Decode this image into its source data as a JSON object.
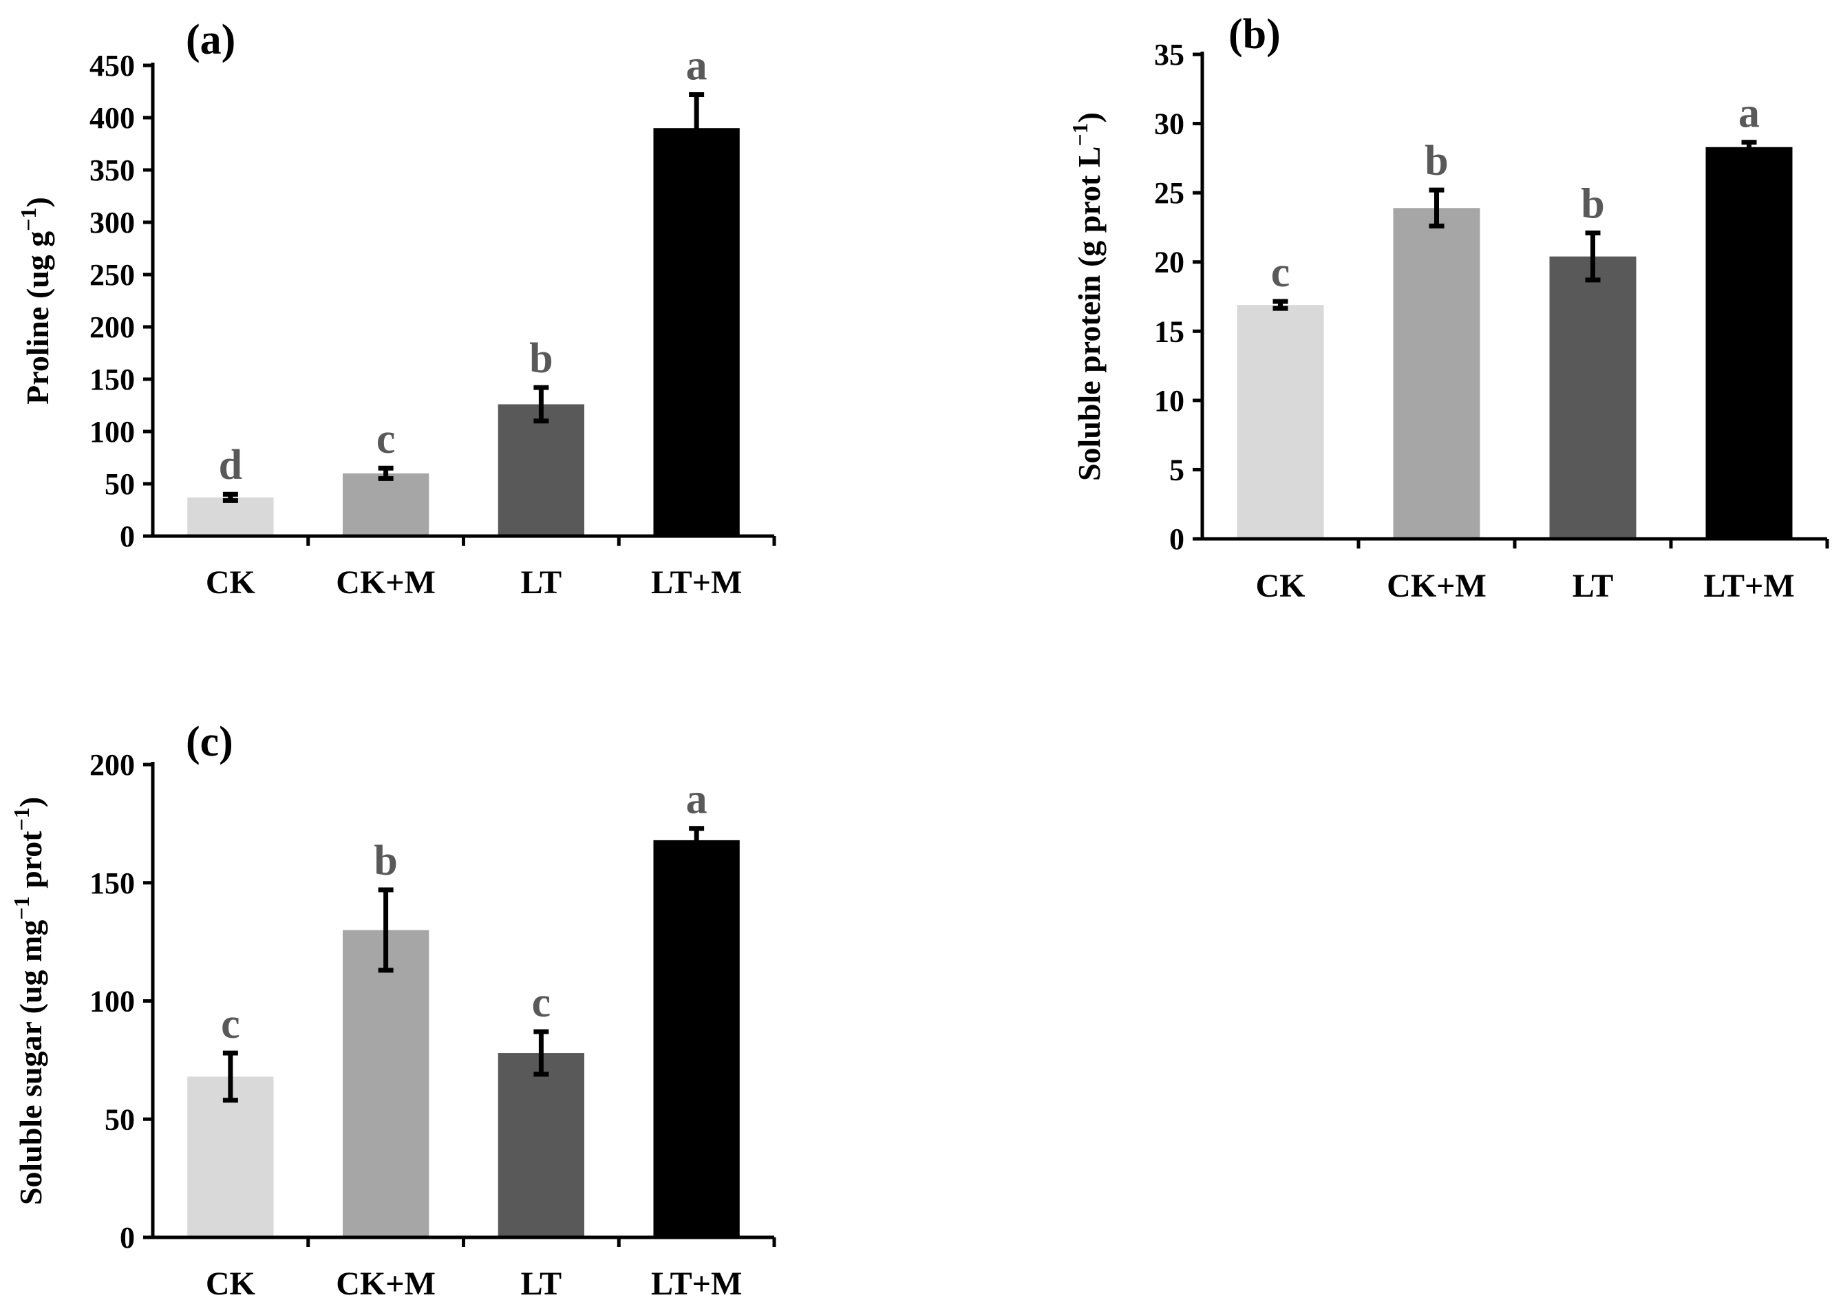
{
  "colors": {
    "CK": "#d9d9d9",
    "CK+M": "#a6a6a6",
    "LT": "#595959",
    "LT+M": "#000000",
    "letters": "#595959"
  },
  "chart_data": [
    {
      "type": "bar",
      "panel": "(a)",
      "ylabel": "Proline (ug g⁻¹)",
      "xlabel": "",
      "ylim": [
        0,
        450
      ],
      "yticks": [
        0,
        50,
        100,
        150,
        200,
        250,
        300,
        350,
        400,
        450
      ],
      "categories": [
        "CK",
        "CK+M",
        "LT",
        "LT+M"
      ],
      "values": [
        37,
        60,
        126,
        390
      ],
      "errors": [
        3,
        5,
        16,
        32
      ],
      "letters": [
        "d",
        "c",
        "b",
        "a"
      ]
    },
    {
      "type": "bar",
      "panel": "(b)",
      "ylabel": "Soluble protein (g prot L⁻¹)",
      "xlabel": "",
      "ylim": [
        0,
        35
      ],
      "yticks": [
        0,
        5,
        10,
        15,
        20,
        25,
        30,
        35
      ],
      "categories": [
        "CK",
        "CK+M",
        "LT",
        "LT+M"
      ],
      "values": [
        16.9,
        23.9,
        20.4,
        28.3
      ],
      "errors": [
        0.25,
        1.3,
        1.7,
        0.35
      ],
      "letters": [
        "c",
        "b",
        "b",
        "a"
      ]
    },
    {
      "type": "bar",
      "panel": "(c)",
      "ylabel": "Soluble sugar (ug mg⁻¹ prot⁻¹)",
      "xlabel": "",
      "ylim": [
        0,
        200
      ],
      "yticks": [
        0,
        50,
        100,
        150,
        200
      ],
      "categories": [
        "CK",
        "CK+M",
        "LT",
        "LT+M"
      ],
      "values": [
        68,
        130,
        78,
        168
      ],
      "errors": [
        10,
        17,
        9,
        5
      ],
      "letters": [
        "c",
        "b",
        "c",
        "a"
      ]
    }
  ]
}
